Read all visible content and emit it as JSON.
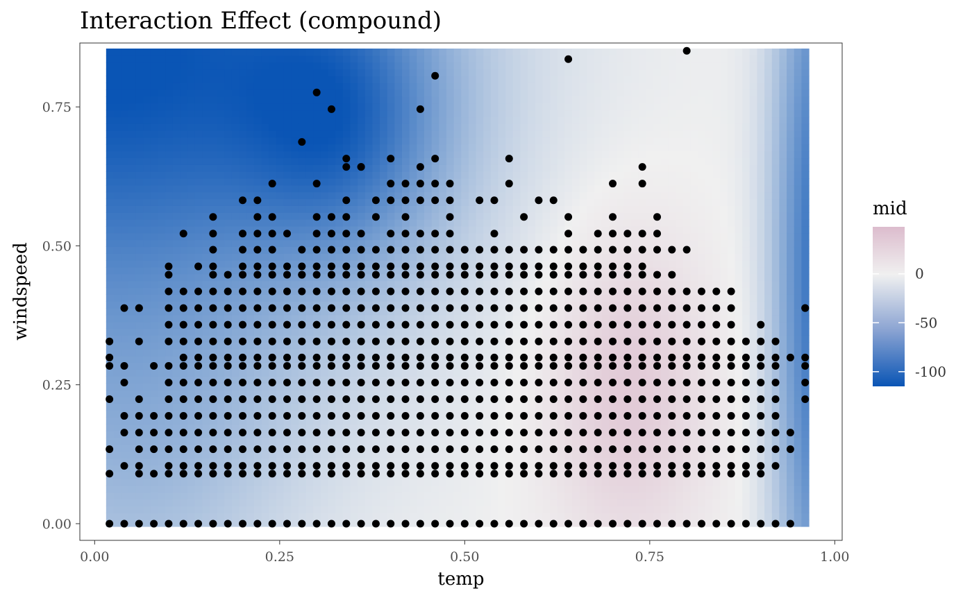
{
  "chart_data": {
    "type": "heatmap",
    "title": "Interaction Effect (compound)",
    "xlabel": "temp",
    "ylabel": "windspeed",
    "xlim": [
      -0.02,
      1.01
    ],
    "ylim": [
      -0.03,
      0.865
    ],
    "x_ticks": [
      "0.00",
      "0.25",
      "0.50",
      "0.75",
      "1.00"
    ],
    "x_tick_values": [
      0,
      0.25,
      0.5,
      0.75,
      1.0
    ],
    "y_ticks": [
      "0.00",
      "0.25",
      "0.50",
      "0.75"
    ],
    "y_tick_values": [
      0,
      0.25,
      0.5,
      0.75
    ],
    "grid": false,
    "heatmap_extent": {
      "x": [
        0.0155,
        0.965
      ],
      "y": [
        -0.005,
        0.855
      ]
    },
    "colors": {
      "low": "#0a55b5",
      "mid": "#f0f0f0",
      "high": "#dcbccd",
      "point": "#000000",
      "panel_border": "#333333"
    },
    "legend": {
      "title": "mid",
      "position": "right",
      "range": [
        -115,
        48
      ],
      "ticks": [
        0,
        -50,
        -100
      ],
      "tick_labels": [
        "0",
        "-50",
        "-100"
      ]
    },
    "points_note": "",
    "point_rows": [
      {
        "y": 0.0,
        "x_min": 0.02,
        "x_max": 0.94,
        "gaps": []
      },
      {
        "y": 0.09,
        "x_min": 0.02,
        "x_max": 0.9,
        "gaps": [
          0.04
        ]
      },
      {
        "y": 0.104,
        "x_min": 0.04,
        "x_max": 0.92,
        "gaps": [
          0.08
        ]
      },
      {
        "y": 0.134,
        "x_min": 0.02,
        "x_max": 0.94,
        "gaps": [
          0.04
        ]
      },
      {
        "y": 0.164,
        "x_min": 0.04,
        "x_max": 0.94,
        "gaps": []
      },
      {
        "y": 0.194,
        "x_min": 0.04,
        "x_max": 0.92,
        "gaps": []
      },
      {
        "y": 0.224,
        "x_min": 0.02,
        "x_max": 0.96,
        "gaps": [
          0.04,
          0.08,
          0.94
        ]
      },
      {
        "y": 0.254,
        "x_min": 0.04,
        "x_max": 0.96,
        "gaps": [
          0.06,
          0.08,
          0.94
        ]
      },
      {
        "y": 0.284,
        "x_min": 0.02,
        "x_max": 0.96,
        "gaps": [
          0.06,
          0.94
        ]
      },
      {
        "y": 0.299,
        "x_min": 0.02,
        "x_max": 0.96,
        "gaps": [
          0.04,
          0.06,
          0.08,
          0.1
        ]
      },
      {
        "y": 0.328,
        "x_min": 0.02,
        "x_max": 0.92,
        "gaps": [
          0.04,
          0.08
        ]
      },
      {
        "y": 0.358,
        "x_min": 0.1,
        "x_max": 0.9,
        "gaps": [
          0.88
        ]
      },
      {
        "y": 0.388,
        "x_min": 0.04,
        "x_max": 0.96,
        "gaps": [
          0.08,
          0.88,
          0.9,
          0.92,
          0.94
        ]
      },
      {
        "y": 0.418,
        "x_min": 0.1,
        "x_max": 0.86,
        "gaps": []
      },
      {
        "y": 0.448,
        "x_min": 0.1,
        "x_max": 0.78,
        "gaps": [
          0.12,
          0.14
        ]
      },
      {
        "y": 0.463,
        "x_min": 0.1,
        "x_max": 0.74,
        "gaps": [
          0.12,
          0.18
        ]
      },
      {
        "y": 0.493,
        "x_min": 0.16,
        "x_max": 0.8,
        "gaps": [
          0.18,
          0.26
        ]
      },
      {
        "y": 0.522,
        "x_min": 0.12,
        "x_max": 0.76,
        "gaps": [
          0.14,
          0.18,
          0.28,
          0.38,
          0.5,
          0.52,
          0.56,
          0.58,
          0.6,
          0.62,
          0.66
        ]
      },
      {
        "y": 0.552,
        "x_min": 0.16,
        "x_max": 0.76,
        "gaps": [
          0.18,
          0.2,
          0.26,
          0.28,
          0.36,
          0.4,
          0.44,
          0.46,
          0.5,
          0.52,
          0.54,
          0.56,
          0.6,
          0.62,
          0.66,
          0.68,
          0.72,
          0.74
        ]
      },
      {
        "y": 0.582,
        "x_min": 0.2,
        "x_max": 0.62,
        "gaps": [
          0.24,
          0.26,
          0.28,
          0.3,
          0.32,
          0.36,
          0.5,
          0.56,
          0.58
        ]
      },
      {
        "y": 0.612,
        "x_min": 0.24,
        "x_max": 0.74,
        "gaps": [
          0.26,
          0.28,
          0.32,
          0.34,
          0.36,
          0.38,
          0.5,
          0.52,
          0.54,
          0.58,
          0.6,
          0.62,
          0.64,
          0.66,
          0.68,
          0.72
        ]
      },
      {
        "y": 0.642,
        "x_min": 0.34,
        "x_max": 0.74,
        "gaps": [
          0.38,
          0.4,
          0.42,
          0.46,
          0.48,
          0.5,
          0.52,
          0.54,
          0.56,
          0.58,
          0.6,
          0.62,
          0.64,
          0.66,
          0.68,
          0.7,
          0.72
        ]
      },
      {
        "y": 0.657,
        "x_min": 0.34,
        "x_max": 0.56,
        "gaps": [
          0.36,
          0.38,
          0.42,
          0.44,
          0.48,
          0.5,
          0.52,
          0.54
        ]
      }
    ],
    "extra_points": [
      {
        "x": 0.28,
        "y": 0.687
      },
      {
        "x": 0.3,
        "y": 0.776
      },
      {
        "x": 0.32,
        "y": 0.746
      },
      {
        "x": 0.44,
        "y": 0.746
      },
      {
        "x": 0.46,
        "y": 0.806
      },
      {
        "x": 0.64,
        "y": 0.836
      },
      {
        "x": 0.8,
        "y": 0.851
      },
      {
        "x": 0.96,
        "y": 0.388
      },
      {
        "x": 0.36,
        "y": 0.642
      },
      {
        "x": 0.28,
        "y": 0.448
      },
      {
        "x": 0.06,
        "y": 0.388
      }
    ]
  }
}
